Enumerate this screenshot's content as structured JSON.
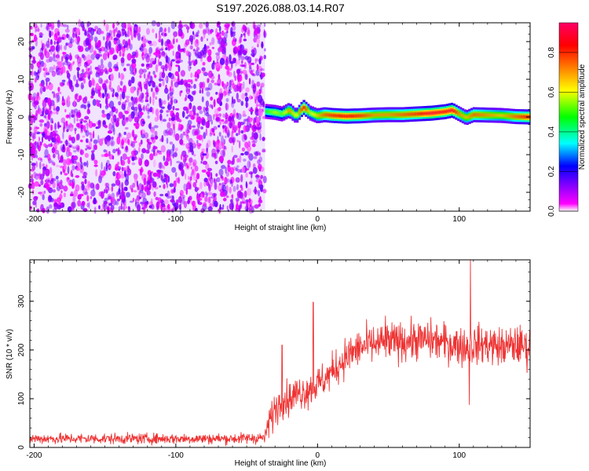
{
  "figure_title": "S197.2026.088.03.14.R07",
  "colors": {
    "snr_line": "#ee3333",
    "frame": "#000000",
    "colormap": [
      "#ffffff",
      "#ff00ff",
      "#8000ff",
      "#0000ff",
      "#00ffff",
      "#00ff00",
      "#ffff00",
      "#ff8000",
      "#ff0000",
      "#ff0066"
    ]
  },
  "chart_data": [
    {
      "type": "heatmap",
      "title": "",
      "xlabel": "Height of straight line (km)",
      "ylabel": "Frequency (Hz)",
      "xlim": [
        -203,
        150
      ],
      "ylim": [
        -25,
        25
      ],
      "x_ticks": [
        -200,
        -100,
        0,
        100
      ],
      "x_tick_labels": [
        "-200",
        "-100",
        "0",
        "100"
      ],
      "y_ticks": [
        -20,
        -10,
        0,
        10,
        20
      ],
      "y_tick_labels": [
        "-20",
        "-10",
        "0",
        "10",
        "20"
      ],
      "colorbar": {
        "label": "Normalized spectral amplitude",
        "range": [
          0,
          0.95
        ],
        "ticks": [
          0,
          0.2,
          0.4,
          0.6,
          0.8
        ],
        "tick_labels": [
          "0.0",
          "0.2",
          "0.4",
          "0.6",
          "0.8"
        ]
      },
      "regions": [
        {
          "name": "noise",
          "x_range": [
            -203,
            -37
          ],
          "y_range": [
            -25,
            25
          ],
          "amplitude_range": [
            0.0,
            0.15
          ]
        },
        {
          "name": "signal",
          "x_range": [
            -37,
            150
          ],
          "center_frequency": 0.5,
          "amplitude_range": [
            0.3,
            0.95
          ]
        }
      ],
      "signal_trace": {
        "x": [
          -37,
          -30,
          -25,
          -20,
          -15,
          -10,
          -5,
          0,
          5,
          10,
          20,
          30,
          40,
          50,
          60,
          70,
          80,
          90,
          95,
          100,
          105,
          110,
          120,
          130,
          140,
          150
        ],
        "freq": [
          1.5,
          1.2,
          0.8,
          1.8,
          0.2,
          2.6,
          1.0,
          0.3,
          0.6,
          0.4,
          0.2,
          0.3,
          0.5,
          0.6,
          0.6,
          0.8,
          1.0,
          1.4,
          1.8,
          0.8,
          -0.2,
          0.6,
          0.5,
          0.4,
          0.1,
          0.0
        ],
        "peak": [
          0.5,
          0.6,
          0.55,
          0.75,
          0.6,
          0.9,
          0.6,
          0.7,
          0.8,
          0.85,
          0.9,
          0.85,
          0.75,
          0.75,
          0.8,
          0.85,
          0.95,
          0.9,
          0.95,
          0.75,
          0.7,
          0.8,
          0.75,
          0.7,
          0.8,
          0.9
        ]
      }
    },
    {
      "type": "line",
      "title": "",
      "xlabel": "Height of straight line (km)",
      "ylabel": "SNR (10 * v/v)",
      "xlim": [
        -203,
        150
      ],
      "ylim": [
        0,
        385
      ],
      "x_ticks": [
        -200,
        -100,
        0,
        100
      ],
      "x_tick_labels": [
        "-200",
        "-100",
        "0",
        "100"
      ],
      "y_ticks": [
        0,
        100,
        200,
        300
      ],
      "y_tick_labels": [
        "0",
        "100",
        "200",
        "300"
      ],
      "series": [
        {
          "x": [
            -203,
            -180,
            -150,
            -120,
            -90,
            -60,
            -37,
            -35,
            -30,
            -25,
            -20,
            -15,
            -10,
            -5,
            0,
            5,
            10,
            15,
            20,
            25,
            30,
            40,
            50,
            60,
            70,
            80,
            90,
            100,
            105,
            110,
            120,
            130,
            140,
            150
          ],
          "mean": [
            18,
            18,
            18,
            18,
            18,
            18,
            20,
            45,
            80,
            95,
            100,
            110,
            115,
            120,
            130,
            140,
            155,
            170,
            185,
            195,
            205,
            212,
            215,
            218,
            220,
            220,
            215,
            210,
            205,
            210,
            212,
            205,
            210,
            205
          ],
          "spread": [
            12,
            12,
            12,
            12,
            12,
            12,
            14,
            35,
            40,
            40,
            40,
            40,
            40,
            40,
            40,
            40,
            40,
            42,
            45,
            45,
            45,
            45,
            45,
            45,
            45,
            45,
            45,
            45,
            45,
            45,
            45,
            45,
            45,
            45
          ],
          "spikes": [
            {
              "x": -3,
              "y": 298
            },
            {
              "x": -25,
              "y": 210
            },
            {
              "x": 108,
              "y": 385
            },
            {
              "x": 107,
              "y": 88
            },
            {
              "x": 48,
              "y": 270
            }
          ]
        }
      ]
    }
  ]
}
